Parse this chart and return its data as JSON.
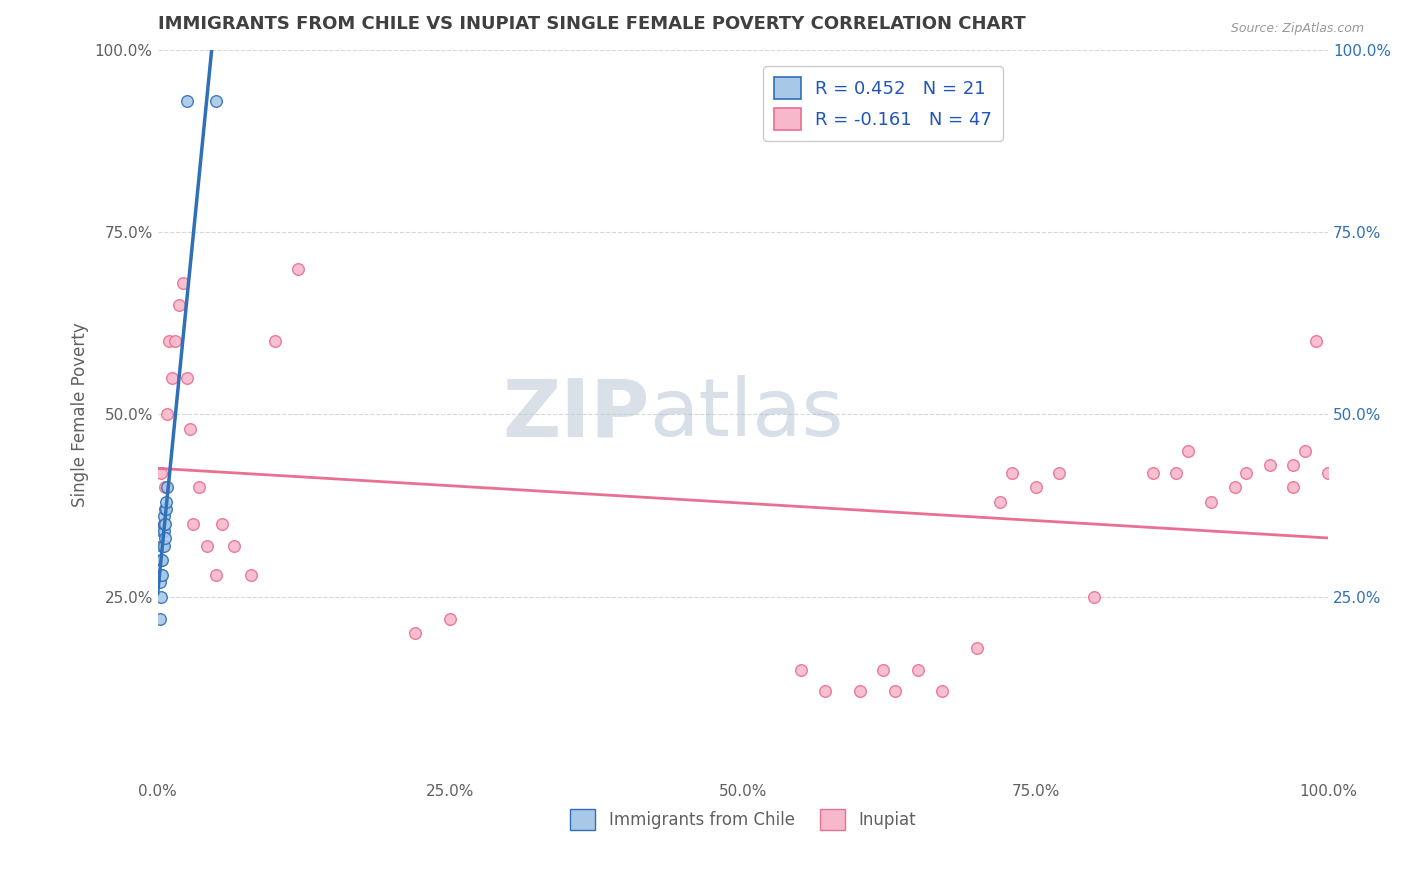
{
  "title": "IMMIGRANTS FROM CHILE VS INUPIAT SINGLE FEMALE POVERTY CORRELATION CHART",
  "source": "Source: ZipAtlas.com",
  "ylabel": "Single Female Poverty",
  "xlim": [
    0.0,
    1.0
  ],
  "ylim": [
    0.0,
    1.0
  ],
  "xtick_labels": [
    "0.0%",
    "25.0%",
    "50.0%",
    "75.0%",
    "100.0%"
  ],
  "xtick_vals": [
    0.0,
    0.25,
    0.5,
    0.75,
    1.0
  ],
  "ytick_labels": [
    "25.0%",
    "50.0%",
    "75.0%",
    "100.0%"
  ],
  "ytick_vals": [
    0.25,
    0.5,
    0.75,
    1.0
  ],
  "legend_r1": "R = 0.452",
  "legend_n1": "N = 21",
  "legend_r2": "R = -0.161",
  "legend_n2": "N = 47",
  "color_chile": "#a8c8e8",
  "color_chile_line": "#3070b8",
  "color_inupiat": "#f8b8cc",
  "color_inupiat_line": "#e87090",
  "marker_size": 70,
  "watermark_zip": "ZIP",
  "watermark_atlas": "atlas",
  "background_color": "#ffffff",
  "grid_color": "#d8d8d8",
  "title_color": "#404040",
  "axis_color": "#606060",
  "right_axis_color": "#3070b8",
  "legend_text_color": "#2255bb",
  "chile_x": [
    0.002,
    0.002,
    0.003,
    0.003,
    0.003,
    0.004,
    0.004,
    0.004,
    0.004,
    0.005,
    0.005,
    0.005,
    0.005,
    0.006,
    0.006,
    0.006,
    0.007,
    0.007,
    0.008,
    0.025,
    0.05
  ],
  "chile_y": [
    0.22,
    0.27,
    0.25,
    0.3,
    0.28,
    0.28,
    0.3,
    0.32,
    0.34,
    0.32,
    0.34,
    0.35,
    0.36,
    0.33,
    0.35,
    0.37,
    0.37,
    0.38,
    0.4,
    0.93,
    0.93
  ],
  "inupiat_x": [
    0.003,
    0.005,
    0.006,
    0.008,
    0.01,
    0.012,
    0.015,
    0.018,
    0.022,
    0.025,
    0.028,
    0.03,
    0.035,
    0.042,
    0.05,
    0.055,
    0.065,
    0.08,
    0.1,
    0.12,
    0.22,
    0.25,
    0.55,
    0.57,
    0.6,
    0.62,
    0.63,
    0.65,
    0.67,
    0.7,
    0.72,
    0.73,
    0.75,
    0.77,
    0.8,
    0.85,
    0.87,
    0.88,
    0.9,
    0.92,
    0.93,
    0.95,
    0.97,
    0.97,
    0.98,
    0.99,
    1.0
  ],
  "inupiat_y": [
    0.42,
    0.35,
    0.4,
    0.5,
    0.6,
    0.55,
    0.6,
    0.65,
    0.68,
    0.55,
    0.48,
    0.35,
    0.4,
    0.32,
    0.28,
    0.35,
    0.32,
    0.28,
    0.6,
    0.7,
    0.2,
    0.22,
    0.15,
    0.12,
    0.12,
    0.15,
    0.12,
    0.15,
    0.12,
    0.18,
    0.38,
    0.42,
    0.4,
    0.42,
    0.25,
    0.42,
    0.42,
    0.45,
    0.38,
    0.4,
    0.42,
    0.43,
    0.4,
    0.43,
    0.45,
    0.6,
    0.42
  ]
}
